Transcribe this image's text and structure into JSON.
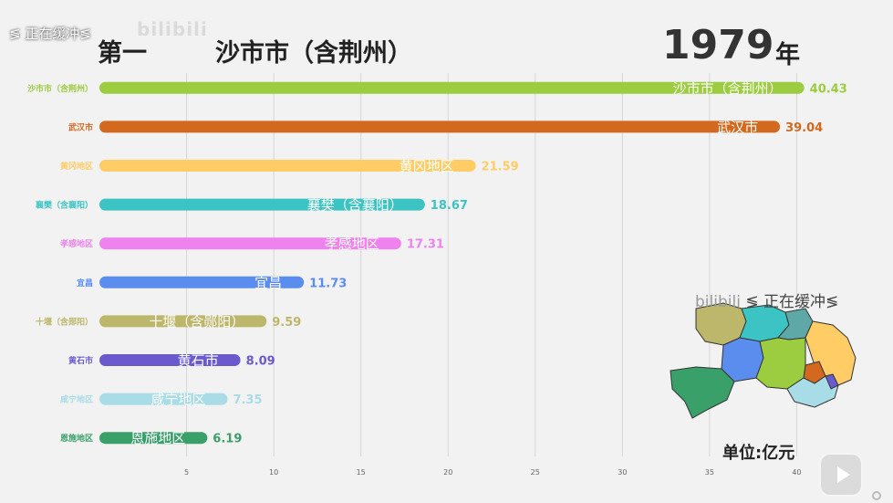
{
  "overlay": {
    "buffer_text": "≶ 正在缓冲≶",
    "watermark": "bilibili",
    "map_buffer_watermark": "bilibili",
    "map_buffer_text": "≶ 正在缓冲≶"
  },
  "header": {
    "rank_label": "第一",
    "leader_name": "沙市市（含荆州）",
    "year": "1979",
    "year_unit": "年"
  },
  "unit_label": "单位:亿元",
  "colors": {
    "background": "#f2f2f2",
    "grid": "#d6d6d6"
  },
  "chart_data": {
    "type": "bar",
    "orientation": "horizontal",
    "categories": [
      "沙市市（含荆州）",
      "武汉市",
      "黄冈地区",
      "襄樊（含襄阳）",
      "孝感地区",
      "宜昌",
      "十堰（含郧阳）",
      "黄石市",
      "咸宁地区",
      "恩施地区"
    ],
    "values": [
      40.43,
      39.04,
      21.59,
      18.67,
      17.31,
      11.73,
      9.59,
      8.09,
      7.35,
      6.19
    ],
    "value_labels": [
      "40.43",
      "39.04",
      "21.59",
      "18.67",
      "17.31",
      "11.73",
      "9.59",
      "8.09",
      "7.35",
      "6.19"
    ],
    "colors": [
      "#9ccc3f",
      "#d2691e",
      "#ffcc66",
      "#3cc4c4",
      "#ee82ee",
      "#5b8def",
      "#bdb76b",
      "#6a5acd",
      "#a8dce6",
      "#3aa06a"
    ],
    "xlim": [
      0,
      40.5
    ],
    "xticks": [
      5,
      10,
      15,
      20,
      25,
      30,
      35,
      40
    ],
    "grid": true
  }
}
